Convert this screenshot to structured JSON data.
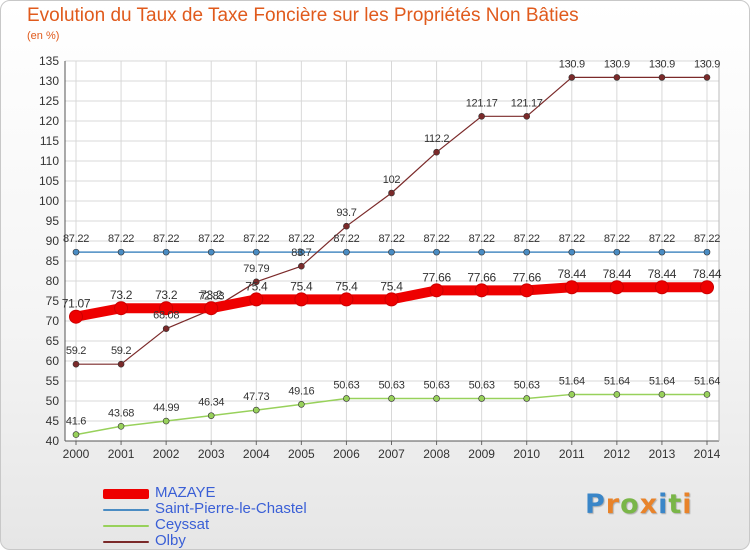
{
  "title": "Evolution du Taux de Taxe Foncière sur les Propriétés Non Bâties",
  "unit_label": "(en %)",
  "logo_text": "Proxiti",
  "chart_data": {
    "type": "line",
    "title": "Evolution du Taux de Taxe Foncière sur les Propriétés Non Bâties",
    "ylabel": "(en %)",
    "xlabel": "",
    "x": [
      "2000",
      "2001",
      "2002",
      "2003",
      "2004",
      "2005",
      "2006",
      "2007",
      "2008",
      "2009",
      "2010",
      "2011",
      "2012",
      "2013",
      "2014"
    ],
    "ylim": [
      40,
      135
    ],
    "yticks": [
      40,
      45,
      50,
      55,
      60,
      65,
      70,
      75,
      80,
      85,
      90,
      95,
      100,
      105,
      110,
      115,
      120,
      125,
      130,
      135
    ],
    "grid": true,
    "legend_position": "bottom-left",
    "series": [
      {
        "name": "MAZAYE",
        "color": "#ee0000",
        "values": [
          71.07,
          73.2,
          73.2,
          73.2,
          75.4,
          75.4,
          75.4,
          75.4,
          77.66,
          77.66,
          77.66,
          78.44,
          78.44,
          78.44,
          78.44
        ],
        "labels": [
          "71.07",
          "73.2",
          "73.2",
          "73.2",
          "75.4",
          "75.4",
          "75.4",
          "75.4",
          "77.66",
          "77.66",
          "77.66",
          "78.44",
          "78.44",
          "78.44",
          "78.44"
        ]
      },
      {
        "name": "Saint-Pierre-le-Chastel",
        "color": "#4a8cc3",
        "values": [
          87.22,
          87.22,
          87.22,
          87.22,
          87.22,
          87.22,
          87.22,
          87.22,
          87.22,
          87.22,
          87.22,
          87.22,
          87.22,
          87.22,
          87.22
        ],
        "labels": [
          "87.22",
          "87.22",
          "87.22",
          "87.22",
          "87.22",
          "87.22",
          "87.22",
          "87.22",
          "87.22",
          "87.22",
          "87.22",
          "87.22",
          "87.22",
          "87.22",
          "87.22"
        ]
      },
      {
        "name": "Ceyssat",
        "color": "#98d15b",
        "values": [
          41.6,
          43.68,
          44.99,
          46.34,
          47.73,
          49.16,
          50.63,
          50.63,
          50.63,
          50.63,
          50.63,
          51.64,
          51.64,
          51.64,
          51.64
        ],
        "labels": [
          "41.6",
          "43.68",
          "44.99",
          "46.34",
          "47.73",
          "49.16",
          "50.63",
          "50.63",
          "50.63",
          "50.63",
          "50.63",
          "51.64",
          "51.64",
          "51.64",
          "51.64"
        ]
      },
      {
        "name": "Olby",
        "color": "#7b2a2a",
        "values": [
          59.2,
          59.2,
          68.08,
          72.83,
          79.79,
          83.7,
          93.7,
          102,
          112.2,
          121.17,
          121.17,
          130.9,
          130.9,
          130.9,
          130.9
        ],
        "labels": [
          "59.2",
          "59.2",
          "68.08",
          "72.83",
          "79.79",
          "83.7",
          "93.7",
          "102",
          "112.2",
          "121.17",
          "121.17",
          "130.9",
          "130.9",
          "130.9",
          "130.9"
        ]
      }
    ]
  }
}
